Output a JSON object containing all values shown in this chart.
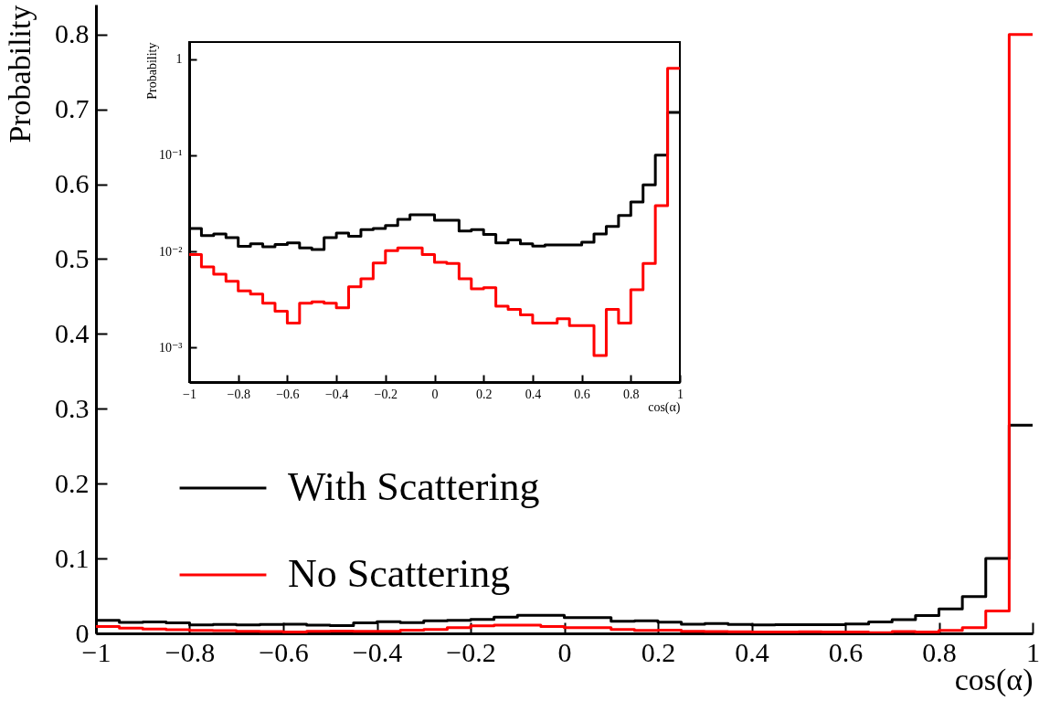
{
  "chart_data": [
    {
      "type": "histogram",
      "xlabel": "cos(α)",
      "ylabel": "Probability",
      "bins": [
        -1,
        -0.95,
        -0.9,
        -0.85,
        -0.8,
        -0.75,
        -0.7,
        -0.65,
        -0.6,
        -0.55,
        -0.5,
        -0.45,
        -0.4,
        -0.35,
        -0.3,
        -0.25,
        -0.2,
        -0.15,
        -0.1,
        -0.05,
        0,
        0.05,
        0.1,
        0.15,
        0.2,
        0.25,
        0.3,
        0.35,
        0.4,
        0.45,
        0.5,
        0.55,
        0.6,
        0.65,
        0.7,
        0.75,
        0.8,
        0.85,
        0.9,
        0.95,
        1
      ],
      "series": [
        {
          "name": "With Scattering",
          "color": "#000000",
          "values": [
            0.0173,
            0.0146,
            0.0152,
            0.0139,
            0.0113,
            0.012,
            0.0112,
            0.0118,
            0.0123,
            0.0109,
            0.0105,
            0.0139,
            0.0155,
            0.0144,
            0.0169,
            0.0173,
            0.0186,
            0.0216,
            0.024,
            0.024,
            0.0211,
            0.0211,
            0.0163,
            0.0169,
            0.015,
            0.0123,
            0.0132,
            0.012,
            0.0114,
            0.0117,
            0.0117,
            0.0117,
            0.0125,
            0.0152,
            0.0182,
            0.0237,
            0.0327,
            0.0492,
            0.1,
            0.278
          ]
        },
        {
          "name": "No Scattering",
          "color": "#ff0000",
          "values": [
            0.0093,
            0.0069,
            0.0058,
            0.0049,
            0.0039,
            0.0036,
            0.0029,
            0.0024,
            0.0018,
            0.0029,
            0.003,
            0.0029,
            0.0026,
            0.0043,
            0.0052,
            0.0076,
            0.0102,
            0.0109,
            0.0109,
            0.0093,
            0.0077,
            0.0075,
            0.0052,
            0.0041,
            0.0042,
            0.0027,
            0.0025,
            0.0022,
            0.0018,
            0.0018,
            0.002,
            0.0017,
            0.0017,
            0.00083,
            0.0025,
            0.0018,
            0.004,
            0.0075,
            0.03,
            0.8
          ]
        }
      ],
      "xlim": [
        -1,
        1
      ],
      "xticks": [
        -1,
        -0.8,
        -0.6,
        -0.4,
        -0.2,
        0,
        0.2,
        0.4,
        0.6,
        0.8,
        1
      ],
      "ylim": [
        0,
        0.84
      ],
      "yticks": [
        0,
        0.1,
        0.2,
        0.3,
        0.4,
        0.5,
        0.6,
        0.7,
        0.8
      ],
      "legend": "left"
    },
    {
      "type": "histogram",
      "xlabel": "cos(α)",
      "ylabel": "Probability",
      "bins": [
        -1,
        -0.95,
        -0.9,
        -0.85,
        -0.8,
        -0.75,
        -0.7,
        -0.65,
        -0.6,
        -0.55,
        -0.5,
        -0.45,
        -0.4,
        -0.35,
        -0.3,
        -0.25,
        -0.2,
        -0.15,
        -0.1,
        -0.05,
        0,
        0.05,
        0.1,
        0.15,
        0.2,
        0.25,
        0.3,
        0.35,
        0.4,
        0.45,
        0.5,
        0.55,
        0.6,
        0.65,
        0.7,
        0.75,
        0.8,
        0.85,
        0.9,
        0.95,
        1
      ],
      "series": [
        {
          "color": "#000000",
          "values": [
            0.0173,
            0.0146,
            0.0152,
            0.0139,
            0.0113,
            0.012,
            0.0112,
            0.0118,
            0.0123,
            0.0109,
            0.0105,
            0.0139,
            0.0155,
            0.0144,
            0.0169,
            0.0173,
            0.0186,
            0.0216,
            0.024,
            0.024,
            0.0211,
            0.0211,
            0.0163,
            0.0169,
            0.015,
            0.0123,
            0.0132,
            0.012,
            0.0114,
            0.0117,
            0.0117,
            0.0117,
            0.0125,
            0.0152,
            0.0182,
            0.0237,
            0.0327,
            0.0492,
            0.1,
            0.278
          ]
        },
        {
          "color": "#ff0000",
          "values": [
            0.0093,
            0.0069,
            0.0058,
            0.0049,
            0.0039,
            0.0036,
            0.0029,
            0.0024,
            0.0018,
            0.0029,
            0.003,
            0.0029,
            0.0026,
            0.0043,
            0.0052,
            0.0076,
            0.0102,
            0.0109,
            0.0109,
            0.0093,
            0.0077,
            0.0075,
            0.0052,
            0.0041,
            0.0042,
            0.0027,
            0.0025,
            0.0022,
            0.0018,
            0.0018,
            0.002,
            0.0017,
            0.0017,
            0.00083,
            0.0025,
            0.0018,
            0.004,
            0.0075,
            0.03,
            0.8
          ]
        }
      ],
      "xlim": [
        -1,
        1
      ],
      "xticks": [
        -1,
        -0.8,
        -0.6,
        -0.4,
        -0.2,
        0,
        0.2,
        0.4,
        0.6,
        0.8,
        1
      ],
      "ylim": [
        0.00044,
        1.5
      ],
      "yticks": [
        {
          "value": 0.001,
          "label": "10⁻³"
        },
        {
          "value": 0.01,
          "label": "10⁻²"
        },
        {
          "value": 0.1,
          "label": "10⁻¹"
        },
        1
      ],
      "log": true,
      "legend": false
    }
  ]
}
